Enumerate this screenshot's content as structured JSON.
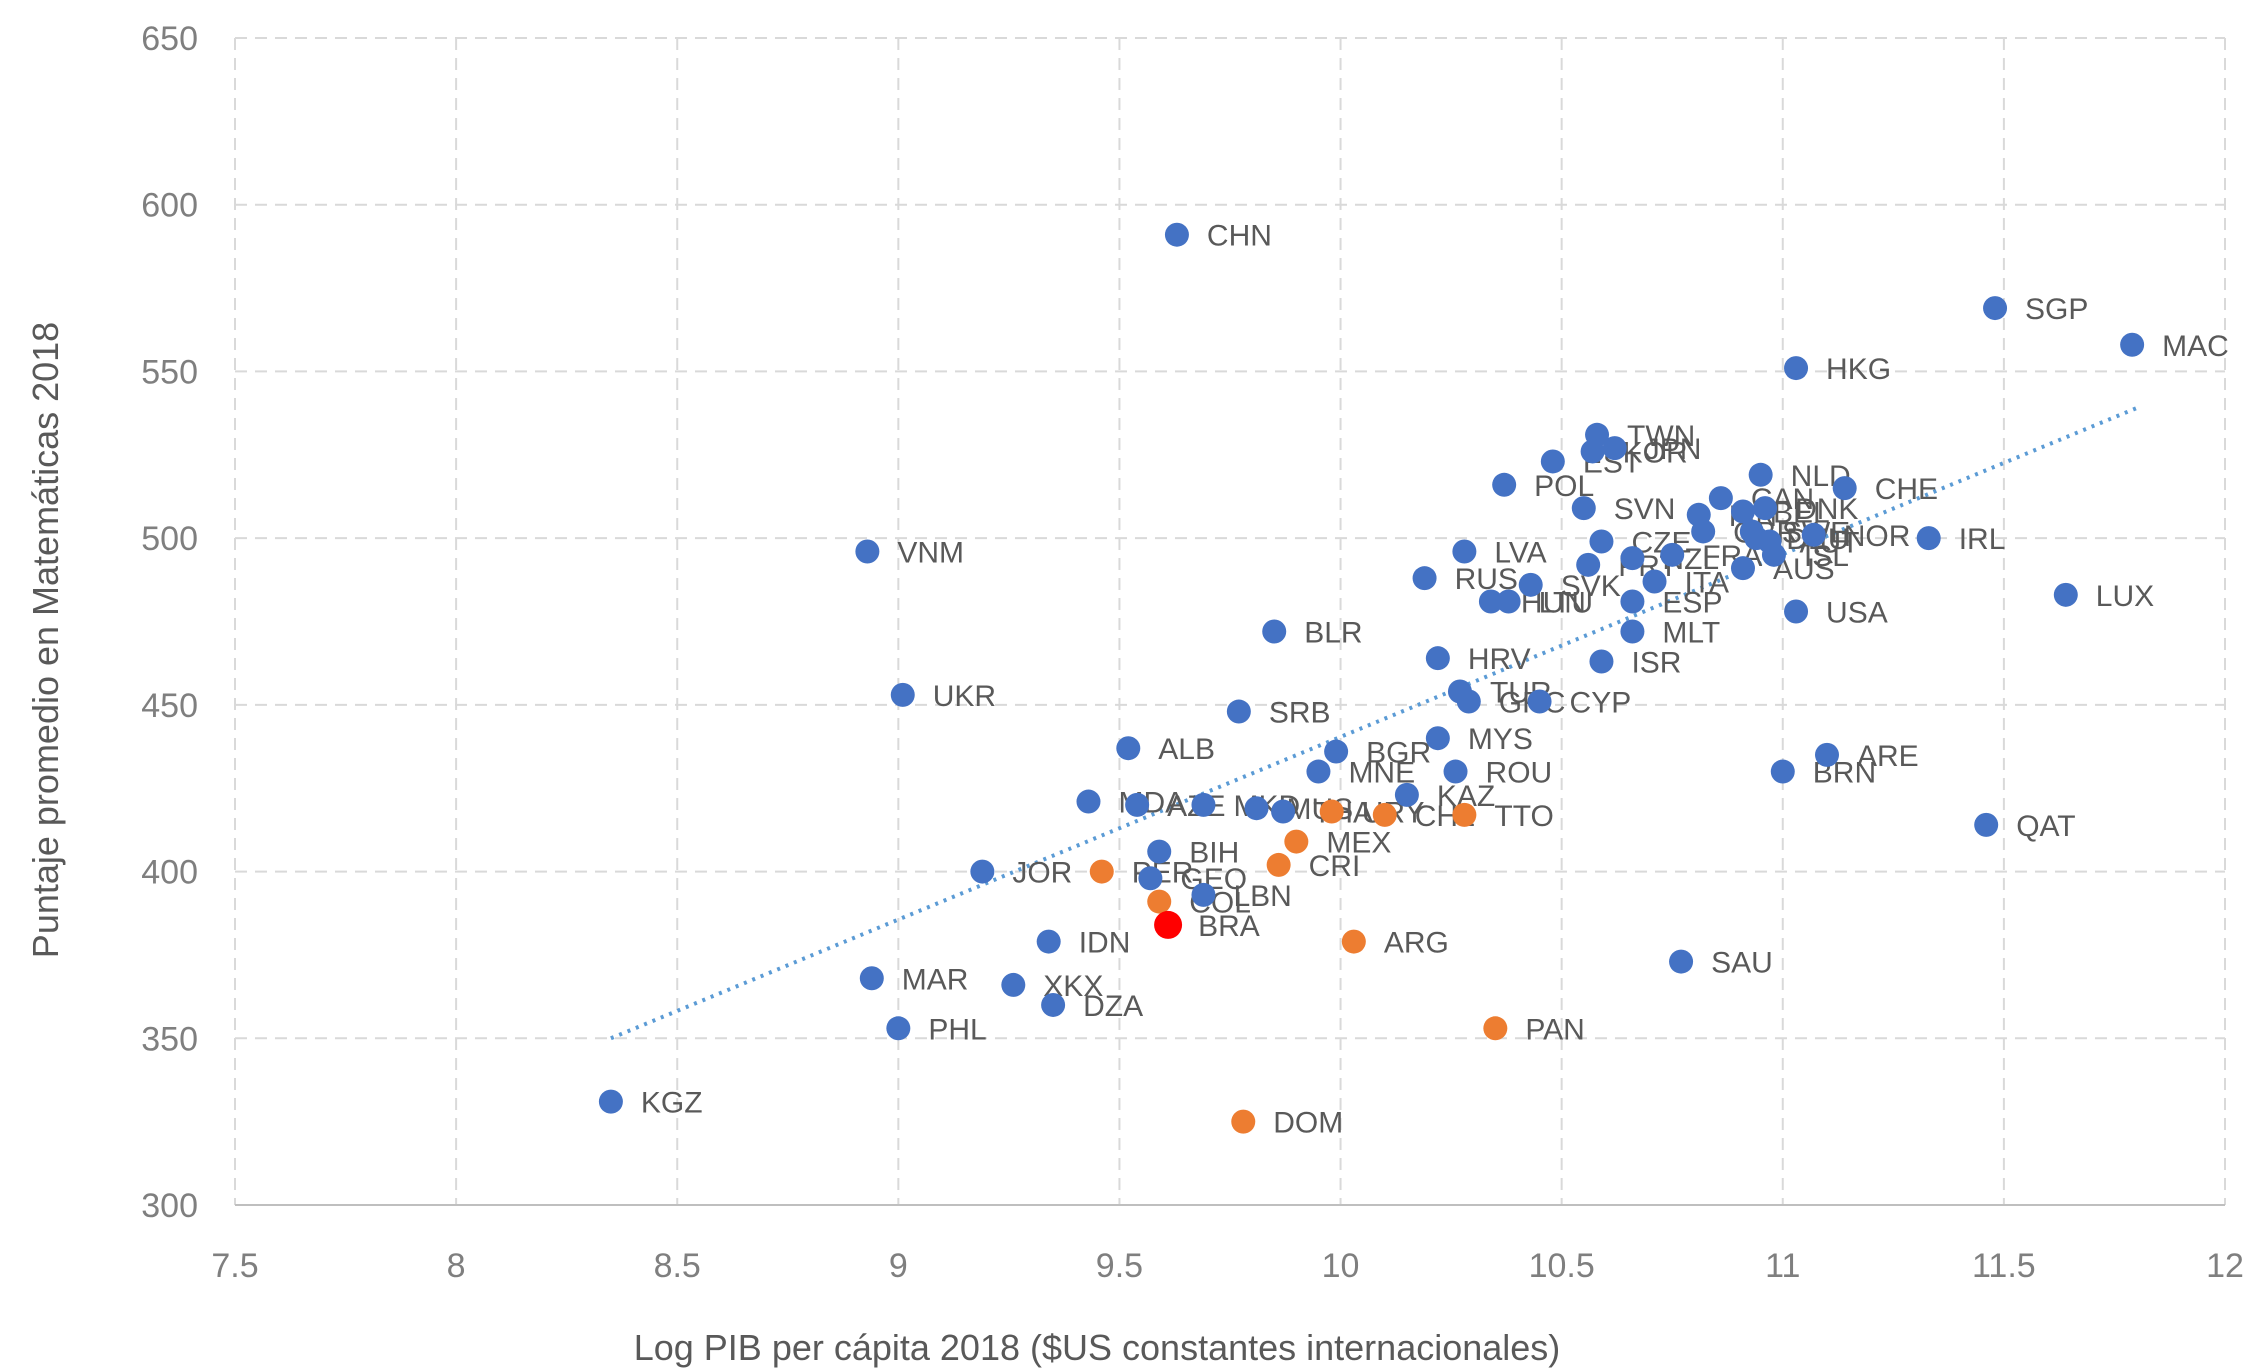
{
  "colors": {
    "blue": "#4472c4",
    "orange": "#ed7d31",
    "red": "#ff0000",
    "trend": "#5b9bd5"
  },
  "chart_data": {
    "type": "scatter",
    "xlabel": "Log PIB per cápita 2018 ($US constantes internacionales)",
    "ylabel": "Puntaje promedio en Matemáticas 2018",
    "xlim": [
      7.5,
      12
    ],
    "ylim": [
      300,
      650
    ],
    "xticks": [
      "7.5",
      "8",
      "8.5",
      "9",
      "9.5",
      "10",
      "10.5",
      "11",
      "11.5",
      "12"
    ],
    "yticks": [
      "300",
      "350",
      "400",
      "450",
      "500",
      "550",
      "600",
      "650"
    ],
    "grid": true,
    "trendline": {
      "style": "dotted",
      "x": [
        8.35,
        11.8
      ],
      "y": [
        350,
        539
      ]
    },
    "points": [
      {
        "label": "CHN",
        "x": 9.63,
        "y": 591,
        "group": "blue"
      },
      {
        "label": "SGP",
        "x": 11.48,
        "y": 569,
        "group": "blue"
      },
      {
        "label": "MAC",
        "x": 11.79,
        "y": 558,
        "group": "blue"
      },
      {
        "label": "HKG",
        "x": 11.03,
        "y": 551,
        "group": "blue"
      },
      {
        "label": "TWN",
        "x": 10.58,
        "y": 531,
        "group": "blue"
      },
      {
        "label": "JPN",
        "x": 10.62,
        "y": 527,
        "group": "blue"
      },
      {
        "label": "KOR",
        "x": 10.57,
        "y": 526,
        "group": "blue"
      },
      {
        "label": "EST",
        "x": 10.48,
        "y": 523,
        "group": "blue"
      },
      {
        "label": "NLD",
        "x": 10.95,
        "y": 519,
        "group": "blue"
      },
      {
        "label": "POL",
        "x": 10.37,
        "y": 516,
        "group": "blue"
      },
      {
        "label": "CHE",
        "x": 11.14,
        "y": 515,
        "group": "blue"
      },
      {
        "label": "CAN",
        "x": 10.86,
        "y": 512,
        "group": "blue"
      },
      {
        "label": "DNK",
        "x": 10.96,
        "y": 509,
        "group": "blue"
      },
      {
        "label": "SVN",
        "x": 10.55,
        "y": 509,
        "group": "blue"
      },
      {
        "label": "BEL",
        "x": 10.91,
        "y": 508,
        "group": "blue"
      },
      {
        "label": "FIN",
        "x": 10.81,
        "y": 507,
        "group": "blue"
      },
      {
        "label": "SWE",
        "x": 10.93,
        "y": 502,
        "group": "blue"
      },
      {
        "label": "GBR",
        "x": 10.82,
        "y": 502,
        "group": "blue"
      },
      {
        "label": "NOR",
        "x": 11.07,
        "y": 501,
        "group": "blue"
      },
      {
        "label": "DEU",
        "x": 10.94,
        "y": 500,
        "group": "blue"
      },
      {
        "label": "IRL",
        "x": 11.33,
        "y": 500,
        "group": "blue"
      },
      {
        "label": "CZE",
        "x": 10.59,
        "y": 499,
        "group": "blue"
      },
      {
        "label": "AUT",
        "x": 10.97,
        "y": 499,
        "group": "blue"
      },
      {
        "label": "LVA",
        "x": 10.28,
        "y": 496,
        "group": "blue"
      },
      {
        "label": "FRA",
        "x": 10.75,
        "y": 495,
        "group": "blue"
      },
      {
        "label": "ISL",
        "x": 10.98,
        "y": 495,
        "group": "blue"
      },
      {
        "label": "NZL",
        "x": 10.66,
        "y": 494,
        "group": "blue"
      },
      {
        "label": "PRT",
        "x": 10.56,
        "y": 492,
        "group": "blue"
      },
      {
        "label": "AUS",
        "x": 10.91,
        "y": 491,
        "group": "blue"
      },
      {
        "label": "RUS",
        "x": 10.19,
        "y": 488,
        "group": "blue"
      },
      {
        "label": "ITA",
        "x": 10.71,
        "y": 487,
        "group": "blue"
      },
      {
        "label": "SVK",
        "x": 10.43,
        "y": 486,
        "group": "blue"
      },
      {
        "label": "LUX",
        "x": 11.64,
        "y": 483,
        "group": "blue"
      },
      {
        "label": "ESP",
        "x": 10.66,
        "y": 481,
        "group": "blue"
      },
      {
        "label": "HUN",
        "x": 10.34,
        "y": 481,
        "group": "blue"
      },
      {
        "label": "LTU",
        "x": 10.38,
        "y": 481,
        "group": "blue"
      },
      {
        "label": "USA",
        "x": 11.03,
        "y": 478,
        "group": "blue"
      },
      {
        "label": "MLT",
        "x": 10.66,
        "y": 472,
        "group": "blue"
      },
      {
        "label": "BLR",
        "x": 9.85,
        "y": 472,
        "group": "blue"
      },
      {
        "label": "HRV",
        "x": 10.22,
        "y": 464,
        "group": "blue"
      },
      {
        "label": "ISR",
        "x": 10.59,
        "y": 463,
        "group": "blue"
      },
      {
        "label": "UKR",
        "x": 9.01,
        "y": 453,
        "group": "blue"
      },
      {
        "label": "TUR",
        "x": 10.27,
        "y": 454,
        "group": "blue"
      },
      {
        "label": "GRC",
        "x": 10.29,
        "y": 451,
        "group": "blue"
      },
      {
        "label": "CYP",
        "x": 10.45,
        "y": 451,
        "group": "blue"
      },
      {
        "label": "SRB",
        "x": 9.77,
        "y": 448,
        "group": "blue"
      },
      {
        "label": "MYS",
        "x": 10.22,
        "y": 440,
        "group": "blue"
      },
      {
        "label": "ALB",
        "x": 9.52,
        "y": 437,
        "group": "blue"
      },
      {
        "label": "BGR",
        "x": 9.99,
        "y": 436,
        "group": "blue"
      },
      {
        "label": "ARE",
        "x": 11.1,
        "y": 435,
        "group": "blue"
      },
      {
        "label": "BRN",
        "x": 11.0,
        "y": 430,
        "group": "blue"
      },
      {
        "label": "ROU",
        "x": 10.26,
        "y": 430,
        "group": "blue"
      },
      {
        "label": "AZE",
        "x": 9.54,
        "y": 420,
        "group": "blue"
      },
      {
        "label": "MNE",
        "x": 9.95,
        "y": 430,
        "group": "blue"
      },
      {
        "label": "KAZ",
        "x": 10.15,
        "y": 423,
        "group": "blue"
      },
      {
        "label": "MDA",
        "x": 9.43,
        "y": 421,
        "group": "blue"
      },
      {
        "label": "MKD",
        "x": 9.69,
        "y": 420,
        "group": "blue"
      },
      {
        "label": "MUS",
        "x": 9.81,
        "y": 419,
        "group": "blue"
      },
      {
        "label": "THA",
        "x": 9.87,
        "y": 418,
        "group": "blue"
      },
      {
        "label": "URY",
        "x": 9.98,
        "y": 418,
        "group": "orange"
      },
      {
        "label": "CHL",
        "x": 10.1,
        "y": 417,
        "group": "orange"
      },
      {
        "label": "TTO",
        "x": 10.28,
        "y": 417,
        "group": "orange"
      },
      {
        "label": "QAT",
        "x": 11.46,
        "y": 414,
        "group": "blue"
      },
      {
        "label": "MEX",
        "x": 9.9,
        "y": 409,
        "group": "orange"
      },
      {
        "label": "BIH",
        "x": 9.59,
        "y": 406,
        "group": "blue"
      },
      {
        "label": "CRI",
        "x": 9.86,
        "y": 402,
        "group": "orange"
      },
      {
        "label": "JOR",
        "x": 9.19,
        "y": 400,
        "group": "blue"
      },
      {
        "label": "PER",
        "x": 9.46,
        "y": 400,
        "group": "orange"
      },
      {
        "label": "GEO",
        "x": 9.57,
        "y": 398,
        "group": "blue"
      },
      {
        "label": "LBN",
        "x": 9.69,
        "y": 393,
        "group": "blue"
      },
      {
        "label": "COL",
        "x": 9.59,
        "y": 391,
        "group": "orange"
      },
      {
        "label": "BRA",
        "x": 9.61,
        "y": 384,
        "group": "red"
      },
      {
        "label": "ARG",
        "x": 10.03,
        "y": 379,
        "group": "orange"
      },
      {
        "label": "IDN",
        "x": 9.34,
        "y": 379,
        "group": "blue"
      },
      {
        "label": "SAU",
        "x": 10.77,
        "y": 373,
        "group": "blue"
      },
      {
        "label": "MAR",
        "x": 8.94,
        "y": 368,
        "group": "blue"
      },
      {
        "label": "XKX",
        "x": 9.26,
        "y": 366,
        "group": "blue"
      },
      {
        "label": "PAN",
        "x": 10.35,
        "y": 353,
        "group": "orange"
      },
      {
        "label": "PHL",
        "x": 9.0,
        "y": 353,
        "group": "blue"
      },
      {
        "label": "DZA",
        "x": 9.35,
        "y": 360,
        "group": "blue"
      },
      {
        "label": "VNM",
        "x": 8.93,
        "y": 496,
        "group": "blue"
      },
      {
        "label": "KGZ",
        "x": 8.35,
        "y": 331,
        "group": "blue"
      },
      {
        "label": "DOM",
        "x": 9.78,
        "y": 325,
        "group": "orange"
      }
    ]
  }
}
